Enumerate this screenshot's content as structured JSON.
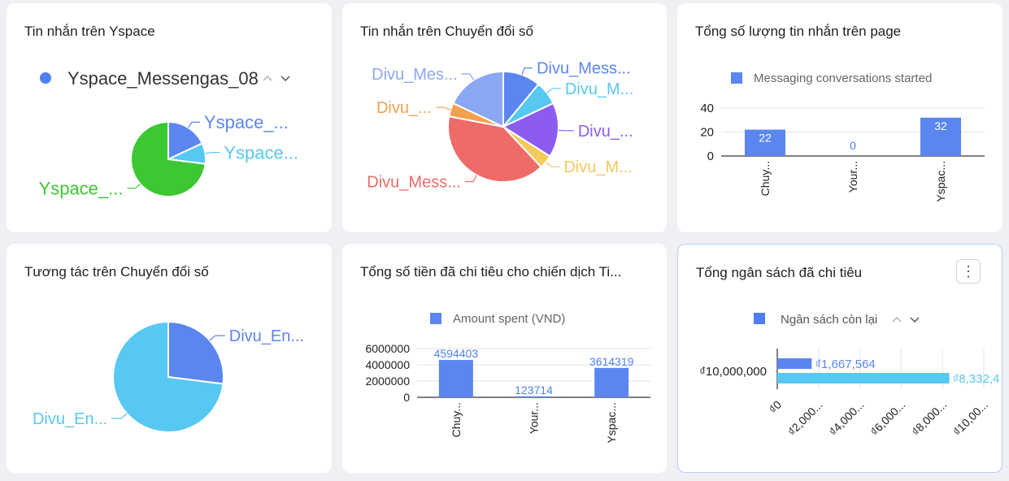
{
  "cards": [
    {
      "title": "Tin nhắn trên Yspace"
    },
    {
      "title": "Tin nhắn trên Chuyển đổi số"
    },
    {
      "title": "Tổng số lượng tin nhắn trên page"
    },
    {
      "title": "Tương tác trên Chuyển đổi số"
    },
    {
      "title": "Tổng số tiền đã chi tiêu cho chiến dịch Ti..."
    },
    {
      "title": "Tổng ngân sách đã chi tiêu"
    }
  ],
  "more_icon": "vertical-ellipsis-icon",
  "chart_data": [
    {
      "type": "pie",
      "legend": {
        "label": "Yspace_Messengas_08",
        "color": "#4f7ff0",
        "placement": "top",
        "paging": true
      },
      "slices": [
        {
          "label": "Yspace_...",
          "value": 18,
          "color": "#5b86f0"
        },
        {
          "label": "Yspace...",
          "value": 9,
          "color": "#57c8f2"
        },
        {
          "label": "Yspace_...",
          "value": 73,
          "color": "#3cc832"
        }
      ]
    },
    {
      "type": "pie",
      "slices": [
        {
          "label": "Divu_Mess...",
          "value": 11,
          "color": "#5b86f0"
        },
        {
          "label": "Divu_M...",
          "value": 7,
          "color": "#57c8f2"
        },
        {
          "label": "Divu_...",
          "value": 16,
          "color": "#8c5cf0"
        },
        {
          "label": "Divu_M...",
          "value": 4,
          "color": "#f5c95a"
        },
        {
          "label": "Divu_Mess...",
          "value": 40,
          "color": "#ee6b68"
        },
        {
          "label": "Divu_...",
          "value": 4,
          "color": "#f5a04e"
        },
        {
          "label": "Divu_Mes...",
          "value": 18,
          "color": "#8aa7f2"
        }
      ]
    },
    {
      "type": "bar",
      "categories": [
        "Chuy...",
        "Your...",
        "Yspac..."
      ],
      "series": [
        {
          "name": "Messaging conversations started",
          "values": [
            22,
            0,
            32
          ],
          "color": "#5b86f0"
        }
      ],
      "yticks": [
        "40",
        "20",
        "0"
      ],
      "ylim": [
        0,
        40
      ],
      "legend": "top",
      "grid": true
    },
    {
      "type": "pie",
      "slices": [
        {
          "label": "Divu_En...",
          "value": 27,
          "color": "#5b86f0"
        },
        {
          "label": "Divu_En...",
          "value": 73,
          "color": "#57c8f2"
        }
      ]
    },
    {
      "type": "bar",
      "categories": [
        "Chuy...",
        "Your...",
        "Yspac..."
      ],
      "series": [
        {
          "name": "Amount spent (VND)",
          "values": [
            4594403,
            123714,
            3614319
          ],
          "labels": [
            "4594403",
            "123714",
            "3614319"
          ],
          "color": "#5b86f0"
        }
      ],
      "yticks": [
        "6000000",
        "4000000",
        "2000000",
        "0"
      ],
      "ylim": [
        0,
        6000000
      ],
      "legend": "top",
      "grid": true
    },
    {
      "type": "bar",
      "orientation": "horizontal",
      "categories": [
        "₫10,000,000"
      ],
      "legend": {
        "label": "Ngân sách còn lại",
        "color": "#4f7ff0",
        "placement": "top",
        "paging": true
      },
      "series": [
        {
          "value": 1667564,
          "label": "₫1,667,564",
          "color": "#5b86f0"
        },
        {
          "value": 8332436,
          "label": "₫8,332,4",
          "color": "#57c8f2"
        }
      ],
      "xticks": [
        "₫0",
        "₫2,000...",
        "₫4,000...",
        "₫6,000...",
        "₫8,000...",
        "₫10,00..."
      ],
      "xlim": [
        0,
        10000000
      ],
      "grid": true
    }
  ]
}
